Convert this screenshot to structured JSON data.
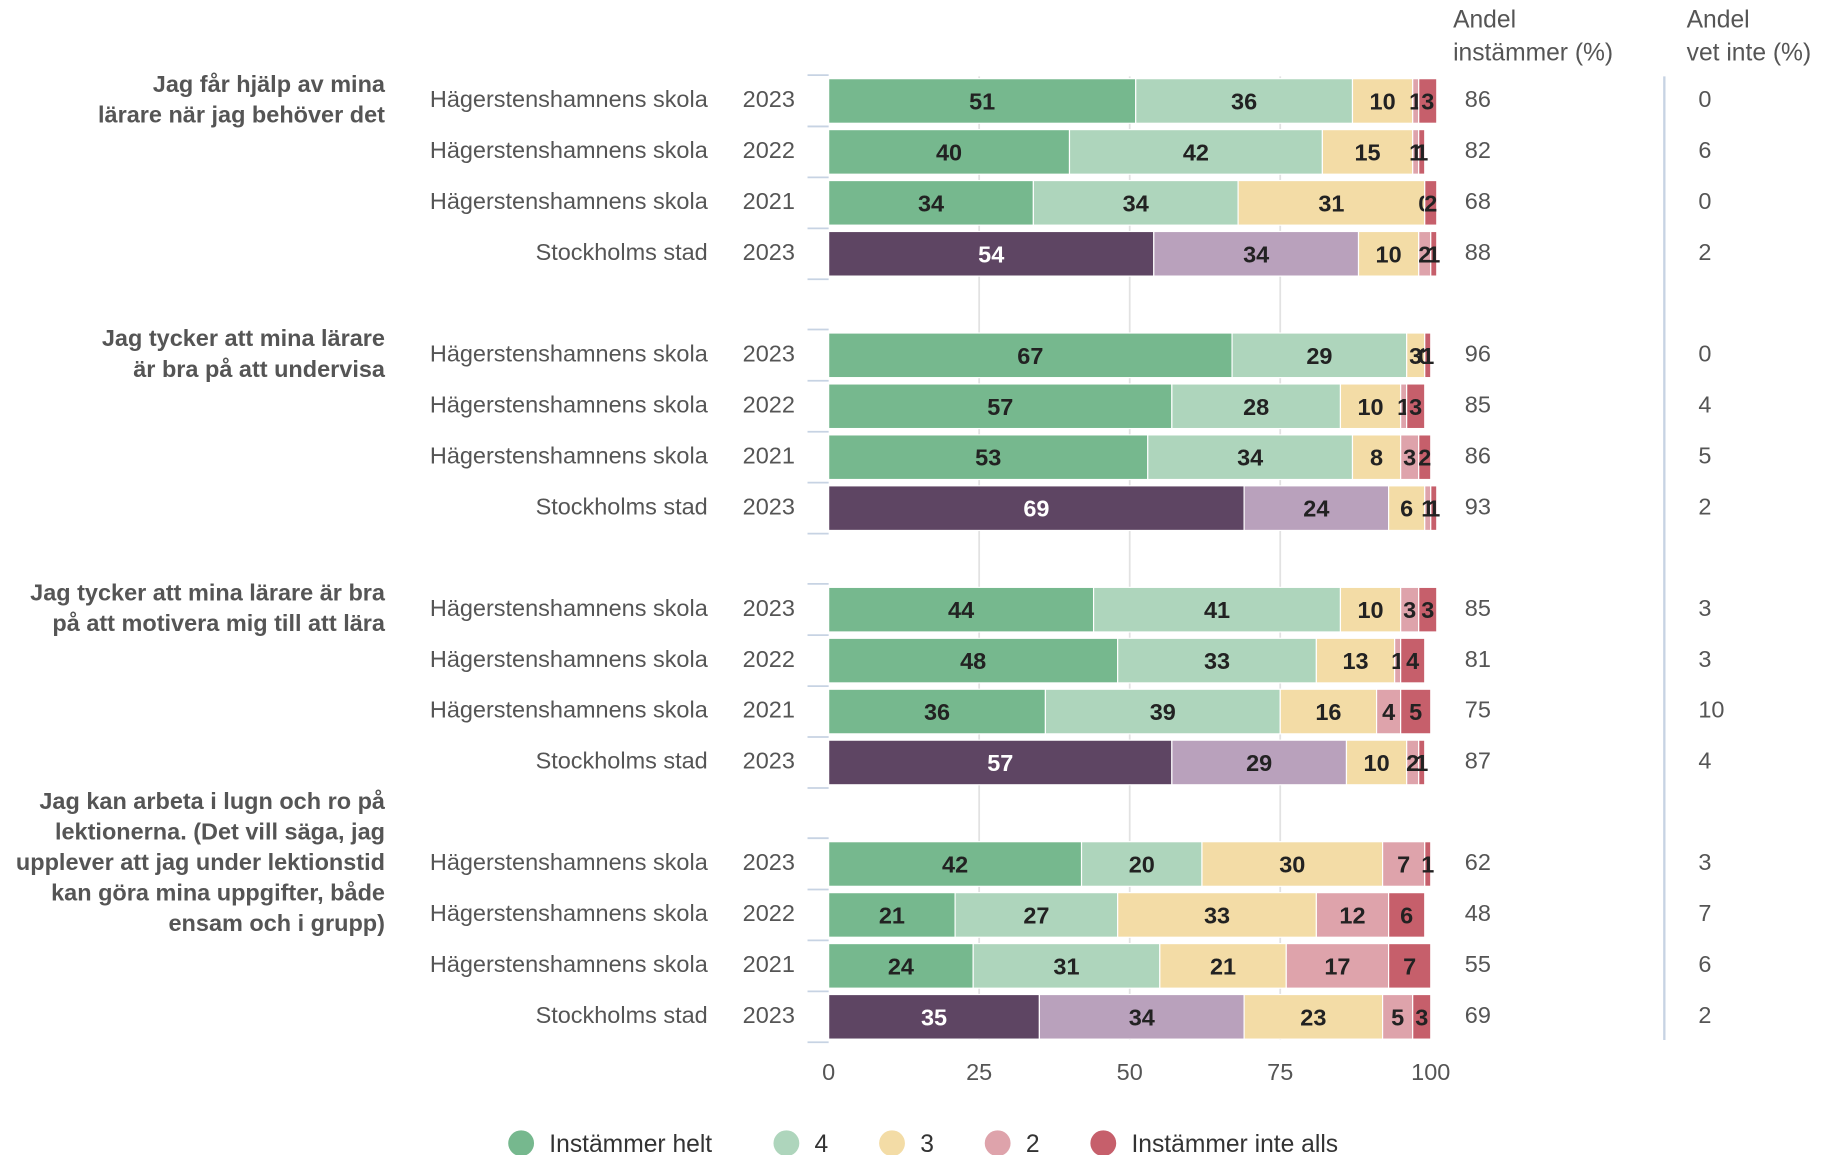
{
  "chart_data": {
    "type": "bar",
    "orientation": "horizontal",
    "stacked": true,
    "xlim": [
      0,
      100
    ],
    "xticks": [
      0,
      25,
      50,
      75,
      100
    ],
    "grid": true,
    "legend": "bottom",
    "columns": [
      [
        "Andel",
        "instämmer (%)"
      ],
      [
        "Andel",
        "vet inte (%)"
      ]
    ],
    "series": [
      {
        "name": "Instämmer helt",
        "color": "#76b88e"
      },
      {
        "name": "4",
        "color": "#aed5bc"
      },
      {
        "name": "3",
        "color": "#f3dca6"
      },
      {
        "name": "2",
        "color": "#dea3ab"
      },
      {
        "name": "Instämmer inte alls",
        "color": "#c65f6b"
      }
    ],
    "groups": [
      {
        "label": [
          "Jag får hjälp av mina",
          "lärare när jag behöver det"
        ],
        "rows": [
          {
            "name": "Hägerstenshamnens skola",
            "year": 2023,
            "values": [
              51,
              36,
              10,
              1,
              3
            ],
            "instammer": 86,
            "vet_inte": 0
          },
          {
            "name": "Hägerstenshamnens skola",
            "year": 2022,
            "values": [
              40,
              42,
              15,
              1,
              1
            ],
            "instammer": 82,
            "vet_inte": 6
          },
          {
            "name": "Hägerstenshamnens skola",
            "year": 2021,
            "values": [
              34,
              34,
              31,
              0,
              2
            ],
            "instammer": 68,
            "vet_inte": 0
          },
          {
            "name": "Stockholms stad",
            "year": 2023,
            "values": [
              54,
              34,
              10,
              2,
              1
            ],
            "instammer": 88,
            "vet_inte": 2,
            "colors": [
              "#5e4563",
              "#b9a1bc",
              "#f3dca6",
              "#dea3ab",
              "#c65f6b"
            ]
          }
        ]
      },
      {
        "label": [
          "Jag tycker att mina lärare",
          "är bra på att undervisa"
        ],
        "rows": [
          {
            "name": "Hägerstenshamnens skola",
            "year": 2023,
            "values": [
              67,
              29,
              3,
              0,
              1
            ],
            "instammer": 96,
            "vet_inte": 0
          },
          {
            "name": "Hägerstenshamnens skola",
            "year": 2022,
            "values": [
              57,
              28,
              10,
              1,
              3
            ],
            "instammer": 85,
            "vet_inte": 4
          },
          {
            "name": "Hägerstenshamnens skola",
            "year": 2021,
            "values": [
              53,
              34,
              8,
              3,
              2
            ],
            "instammer": 86,
            "vet_inte": 5
          },
          {
            "name": "Stockholms stad",
            "year": 2023,
            "values": [
              69,
              24,
              6,
              1,
              1
            ],
            "instammer": 93,
            "vet_inte": 2,
            "colors": [
              "#5e4563",
              "#b9a1bc",
              "#f3dca6",
              "#dea3ab",
              "#c65f6b"
            ]
          }
        ]
      },
      {
        "label": [
          "Jag tycker att mina lärare är bra",
          "på att motivera mig till att lära"
        ],
        "rows": [
          {
            "name": "Hägerstenshamnens skola",
            "year": 2023,
            "values": [
              44,
              41,
              10,
              3,
              3
            ],
            "instammer": 85,
            "vet_inte": 3
          },
          {
            "name": "Hägerstenshamnens skola",
            "year": 2022,
            "values": [
              48,
              33,
              13,
              1,
              4
            ],
            "instammer": 81,
            "vet_inte": 3
          },
          {
            "name": "Hägerstenshamnens skola",
            "year": 2021,
            "values": [
              36,
              39,
              16,
              4,
              5
            ],
            "instammer": 75,
            "vet_inte": 10
          },
          {
            "name": "Stockholms stad",
            "year": 2023,
            "values": [
              57,
              29,
              10,
              2,
              1
            ],
            "instammer": 87,
            "vet_inte": 4,
            "colors": [
              "#5e4563",
              "#b9a1bc",
              "#f3dca6",
              "#dea3ab",
              "#c65f6b"
            ]
          }
        ]
      },
      {
        "label": [
          "Jag kan arbeta i lugn och ro på",
          "lektionerna. (Det vill säga, jag",
          "upplever att jag under lektionstid",
          "kan göra mina uppgifter, både",
          "ensam och i grupp)"
        ],
        "rows": [
          {
            "name": "Hägerstenshamnens skola",
            "year": 2023,
            "values": [
              42,
              20,
              30,
              7,
              1
            ],
            "instammer": 62,
            "vet_inte": 3
          },
          {
            "name": "Hägerstenshamnens skola",
            "year": 2022,
            "values": [
              21,
              27,
              33,
              12,
              6
            ],
            "instammer": 48,
            "vet_inte": 7
          },
          {
            "name": "Hägerstenshamnens skola",
            "year": 2021,
            "values": [
              24,
              31,
              21,
              17,
              7
            ],
            "instammer": 55,
            "vet_inte": 6
          },
          {
            "name": "Stockholms stad",
            "year": 2023,
            "values": [
              35,
              34,
              23,
              5,
              3
            ],
            "instammer": 69,
            "vet_inte": 2,
            "colors": [
              "#5e4563",
              "#b9a1bc",
              "#f3dca6",
              "#dea3ab",
              "#c65f6b"
            ]
          }
        ]
      }
    ]
  }
}
